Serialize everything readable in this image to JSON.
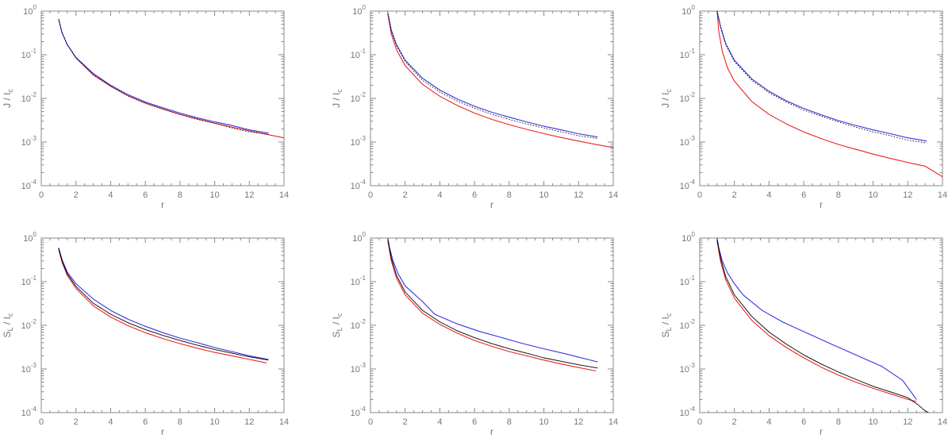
{
  "colors": {
    "red": "#ee2222",
    "blue": "#3333dd",
    "black": "#000000",
    "axis": "#8a8a8a",
    "text": "#777777"
  },
  "chart_data": [
    {
      "type": "line",
      "row": "top",
      "col": 1,
      "xlabel": "r",
      "ylabel": "J / I",
      "ylabel_sub": "c",
      "xlim": [
        0,
        14
      ],
      "ylim": [
        0.0001,
        1
      ],
      "yscale": "log",
      "x_ticks": [
        "0",
        "2",
        "4",
        "6",
        "8",
        "10",
        "12",
        "14"
      ],
      "y_ticks": [
        {
          "base": "10",
          "exp": "-4"
        },
        {
          "base": "10",
          "exp": "-3"
        },
        {
          "base": "10",
          "exp": "-2"
        },
        {
          "base": "10",
          "exp": "-1"
        },
        {
          "base": "10",
          "exp": "0"
        }
      ],
      "series": [
        {
          "color": "red",
          "style": "solid",
          "x": [
            1.0,
            1.2,
            1.5,
            2,
            3,
            4,
            5,
            6,
            7,
            8,
            9,
            10,
            11,
            12,
            13,
            14
          ],
          "y": [
            0.65,
            0.32,
            0.17,
            0.085,
            0.035,
            0.019,
            0.0115,
            0.0078,
            0.0057,
            0.0043,
            0.0034,
            0.0027,
            0.0022,
            0.0018,
            0.0015,
            0.00125
          ]
        },
        {
          "color": "blue",
          "style": "solid",
          "x": [
            1.0,
            1.2,
            1.5,
            2,
            3,
            4,
            5,
            6,
            7,
            8,
            9,
            10,
            11,
            12,
            13.1
          ],
          "y": [
            0.65,
            0.32,
            0.17,
            0.087,
            0.037,
            0.02,
            0.0122,
            0.0083,
            0.0061,
            0.0046,
            0.0036,
            0.0029,
            0.0024,
            0.0019,
            0.0016
          ]
        },
        {
          "color": "black",
          "style": "dotted",
          "x": [
            1.0,
            1.2,
            1.5,
            2,
            3,
            4,
            5,
            6,
            7,
            8,
            9,
            10,
            11,
            12,
            13.1
          ],
          "y": [
            0.66,
            0.32,
            0.17,
            0.084,
            0.034,
            0.019,
            0.0114,
            0.0077,
            0.0057,
            0.0043,
            0.0033,
            0.0027,
            0.0021,
            0.0017,
            0.0015
          ]
        }
      ]
    },
    {
      "type": "line",
      "row": "top",
      "col": 2,
      "xlabel": "r",
      "ylabel": "J / I",
      "ylabel_sub": "c",
      "xlim": [
        0,
        14
      ],
      "ylim": [
        0.0001,
        1
      ],
      "yscale": "log",
      "x_ticks": [
        "0",
        "2",
        "4",
        "6",
        "8",
        "10",
        "12",
        "14"
      ],
      "y_ticks": [
        {
          "base": "10",
          "exp": "-4"
        },
        {
          "base": "10",
          "exp": "-3"
        },
        {
          "base": "10",
          "exp": "-2"
        },
        {
          "base": "10",
          "exp": "-1"
        },
        {
          "base": "10",
          "exp": "0"
        }
      ],
      "series": [
        {
          "color": "red",
          "style": "solid",
          "x": [
            1.0,
            1.2,
            1.5,
            2,
            3,
            4,
            5,
            6,
            7,
            8,
            9,
            10,
            11,
            12,
            13,
            14
          ],
          "y": [
            0.85,
            0.3,
            0.13,
            0.056,
            0.021,
            0.0112,
            0.0069,
            0.0046,
            0.0033,
            0.0025,
            0.00195,
            0.00156,
            0.00127,
            0.00105,
            0.00088,
            0.00075
          ]
        },
        {
          "color": "blue",
          "style": "solid",
          "x": [
            1.0,
            1.2,
            1.5,
            2,
            3,
            4,
            5,
            6,
            7,
            8,
            9,
            10,
            11,
            12,
            13.1
          ],
          "y": [
            0.9,
            0.37,
            0.17,
            0.075,
            0.029,
            0.0155,
            0.0097,
            0.0066,
            0.0048,
            0.0037,
            0.0029,
            0.0023,
            0.0019,
            0.00155,
            0.0013
          ]
        },
        {
          "color": "black",
          "style": "dotted",
          "x": [
            1.0,
            1.2,
            1.5,
            2,
            3,
            4,
            5,
            6,
            7,
            8,
            9,
            10,
            11,
            12,
            13.1
          ],
          "y": [
            0.88,
            0.35,
            0.16,
            0.07,
            0.026,
            0.014,
            0.0087,
            0.006,
            0.0043,
            0.0033,
            0.0026,
            0.0021,
            0.0017,
            0.0014,
            0.0012
          ]
        }
      ]
    },
    {
      "type": "line",
      "row": "top",
      "col": 3,
      "xlabel": "r",
      "ylabel": "J / I",
      "ylabel_sub": "c",
      "xlim": [
        0,
        14
      ],
      "ylim": [
        0.0001,
        1
      ],
      "yscale": "log",
      "x_ticks": [
        "0",
        "2",
        "4",
        "6",
        "8",
        "10",
        "12",
        "14"
      ],
      "y_ticks": [
        {
          "base": "10",
          "exp": "-4"
        },
        {
          "base": "10",
          "exp": "-3"
        },
        {
          "base": "10",
          "exp": "-2"
        },
        {
          "base": "10",
          "exp": "-1"
        },
        {
          "base": "10",
          "exp": "0"
        }
      ],
      "series": [
        {
          "color": "red",
          "style": "solid",
          "x": [
            1.0,
            1.1,
            1.3,
            1.6,
            2,
            3,
            4,
            5,
            6,
            7,
            8,
            9,
            10,
            11,
            12,
            13,
            14
          ],
          "y": [
            1.0,
            0.35,
            0.12,
            0.05,
            0.025,
            0.0085,
            0.0043,
            0.0026,
            0.0017,
            0.0012,
            0.00088,
            0.00068,
            0.00053,
            0.00042,
            0.00034,
            0.00028,
            0.00016
          ]
        },
        {
          "color": "blue",
          "style": "solid",
          "x": [
            1.0,
            1.2,
            1.5,
            2,
            3,
            4,
            5,
            6,
            7,
            8,
            9,
            10,
            11,
            12,
            13.1
          ],
          "y": [
            1.0,
            0.45,
            0.18,
            0.075,
            0.028,
            0.0145,
            0.0088,
            0.0059,
            0.0042,
            0.0031,
            0.0024,
            0.0019,
            0.00155,
            0.00125,
            0.00105
          ]
        },
        {
          "color": "black",
          "style": "dotted",
          "x": [
            1.0,
            1.2,
            1.5,
            2,
            3,
            4,
            5,
            6,
            7,
            8,
            9,
            10,
            11,
            12,
            13.1
          ],
          "y": [
            1.0,
            0.42,
            0.17,
            0.07,
            0.026,
            0.0135,
            0.0082,
            0.0054,
            0.0039,
            0.0029,
            0.0022,
            0.0017,
            0.0014,
            0.0011,
            0.00095
          ]
        }
      ]
    },
    {
      "type": "line",
      "row": "bottom",
      "col": 1,
      "xlabel": "r",
      "ylabel": "S / I",
      "ylabel_sub": "L",
      "ylabel_sub2": "c",
      "xlim": [
        0,
        14
      ],
      "ylim": [
        0.0001,
        1
      ],
      "yscale": "log",
      "x_ticks": [
        "0",
        "2",
        "4",
        "6",
        "8",
        "10",
        "12",
        "14"
      ],
      "y_ticks": [
        {
          "base": "10",
          "exp": "-4"
        },
        {
          "base": "10",
          "exp": "-3"
        },
        {
          "base": "10",
          "exp": "-2"
        },
        {
          "base": "10",
          "exp": "-1"
        },
        {
          "base": "10",
          "exp": "0"
        }
      ],
      "series": [
        {
          "color": "red",
          "style": "solid",
          "x": [
            1.0,
            1.2,
            1.5,
            2,
            3,
            4,
            5,
            6,
            7,
            8,
            9,
            10,
            11,
            12,
            13
          ],
          "y": [
            0.55,
            0.28,
            0.14,
            0.07,
            0.028,
            0.0155,
            0.0098,
            0.0068,
            0.005,
            0.0038,
            0.003,
            0.0024,
            0.002,
            0.00165,
            0.00138
          ]
        },
        {
          "color": "blue",
          "style": "solid",
          "x": [
            1.0,
            1.2,
            1.5,
            2,
            3,
            4,
            5,
            6,
            7,
            8,
            9,
            10,
            11,
            12,
            13.1
          ],
          "y": [
            0.6,
            0.32,
            0.165,
            0.09,
            0.04,
            0.022,
            0.0138,
            0.0095,
            0.0068,
            0.0051,
            0.004,
            0.0031,
            0.0025,
            0.002,
            0.00165
          ]
        },
        {
          "color": "black",
          "style": "solid",
          "x": [
            1.0,
            1.2,
            1.5,
            2,
            3,
            4,
            5,
            6,
            7,
            8,
            9,
            10,
            11,
            12,
            13.1
          ],
          "y": [
            0.58,
            0.3,
            0.15,
            0.078,
            0.032,
            0.018,
            0.0115,
            0.008,
            0.0059,
            0.0045,
            0.0035,
            0.0028,
            0.0023,
            0.0019,
            0.0016
          ]
        }
      ]
    },
    {
      "type": "line",
      "row": "bottom",
      "col": 2,
      "xlabel": "r",
      "ylabel": "S / I",
      "ylabel_sub": "L",
      "ylabel_sub2": "c",
      "xlim": [
        0,
        14
      ],
      "ylim": [
        0.0001,
        1
      ],
      "yscale": "log",
      "x_ticks": [
        "0",
        "2",
        "4",
        "6",
        "8",
        "10",
        "12",
        "14"
      ],
      "y_ticks": [
        {
          "base": "10",
          "exp": "-4"
        },
        {
          "base": "10",
          "exp": "-3"
        },
        {
          "base": "10",
          "exp": "-2"
        },
        {
          "base": "10",
          "exp": "-1"
        },
        {
          "base": "10",
          "exp": "0"
        }
      ],
      "series": [
        {
          "color": "red",
          "style": "solid",
          "x": [
            1.0,
            1.2,
            1.5,
            2,
            3,
            4,
            5,
            6,
            7,
            8,
            9,
            10,
            11,
            12,
            13
          ],
          "y": [
            0.85,
            0.3,
            0.12,
            0.05,
            0.019,
            0.0105,
            0.0066,
            0.0045,
            0.0033,
            0.0025,
            0.002,
            0.0016,
            0.0013,
            0.00108,
            0.0009
          ]
        },
        {
          "color": "blue",
          "style": "solid",
          "x": [
            1.0,
            1.1,
            1.3,
            1.6,
            2,
            3,
            3.7,
            5,
            6.3,
            7.6,
            8.7,
            10,
            11.3,
            13.1
          ],
          "y": [
            1.0,
            0.6,
            0.3,
            0.15,
            0.08,
            0.035,
            0.018,
            0.0108,
            0.0072,
            0.0052,
            0.0039,
            0.0029,
            0.0022,
            0.00145
          ]
        },
        {
          "color": "black",
          "style": "solid",
          "x": [
            1.0,
            1.2,
            1.5,
            2,
            3,
            4,
            5,
            6,
            7,
            8,
            9,
            10,
            11,
            12,
            13.1
          ],
          "y": [
            0.9,
            0.35,
            0.14,
            0.058,
            0.022,
            0.012,
            0.0075,
            0.0052,
            0.0038,
            0.0029,
            0.0023,
            0.0018,
            0.0015,
            0.00125,
            0.00105
          ]
        }
      ]
    },
    {
      "type": "line",
      "row": "bottom",
      "col": 3,
      "xlabel": "r",
      "ylabel": "S / I",
      "ylabel_sub": "L",
      "ylabel_sub2": "c",
      "xlim": [
        0,
        14
      ],
      "ylim": [
        0.0001,
        1
      ],
      "yscale": "log",
      "x_ticks": [
        "0",
        "2",
        "4",
        "6",
        "8",
        "10",
        "12",
        "14"
      ],
      "y_ticks": [
        {
          "base": "10",
          "exp": "-4"
        },
        {
          "base": "10",
          "exp": "-3"
        },
        {
          "base": "10",
          "exp": "-2"
        },
        {
          "base": "10",
          "exp": "-1"
        },
        {
          "base": "10",
          "exp": "0"
        }
      ],
      "series": [
        {
          "color": "red",
          "style": "solid",
          "x": [
            1.0,
            1.2,
            1.5,
            2,
            3,
            4,
            5,
            6,
            7,
            8,
            9,
            10,
            11,
            12,
            12.5
          ],
          "y": [
            0.85,
            0.3,
            0.11,
            0.042,
            0.013,
            0.0058,
            0.0031,
            0.0018,
            0.0011,
            0.00072,
            0.0005,
            0.00036,
            0.00027,
            0.0002,
            0.00018
          ]
        },
        {
          "color": "blue",
          "style": "solid",
          "x": [
            1.0,
            1.1,
            1.3,
            1.6,
            2,
            2.5,
            3.6,
            4.8,
            6.2,
            7.6,
            9.0,
            10.5,
            11.7,
            12.5
          ],
          "y": [
            1.0,
            0.6,
            0.3,
            0.16,
            0.09,
            0.05,
            0.022,
            0.0118,
            0.0066,
            0.0037,
            0.0021,
            0.00115,
            0.00055,
            0.0002
          ]
        },
        {
          "color": "black",
          "style": "solid",
          "x": [
            1.0,
            1.2,
            1.5,
            2,
            3,
            4,
            5,
            6,
            7,
            8,
            9,
            10,
            11,
            12,
            12.6,
            13.0,
            13.2
          ],
          "y": [
            0.9,
            0.35,
            0.13,
            0.05,
            0.016,
            0.007,
            0.0037,
            0.0021,
            0.0013,
            0.00085,
            0.00058,
            0.0004,
            0.0003,
            0.00022,
            0.00015,
            0.00011,
            0.0001
          ]
        }
      ]
    }
  ]
}
